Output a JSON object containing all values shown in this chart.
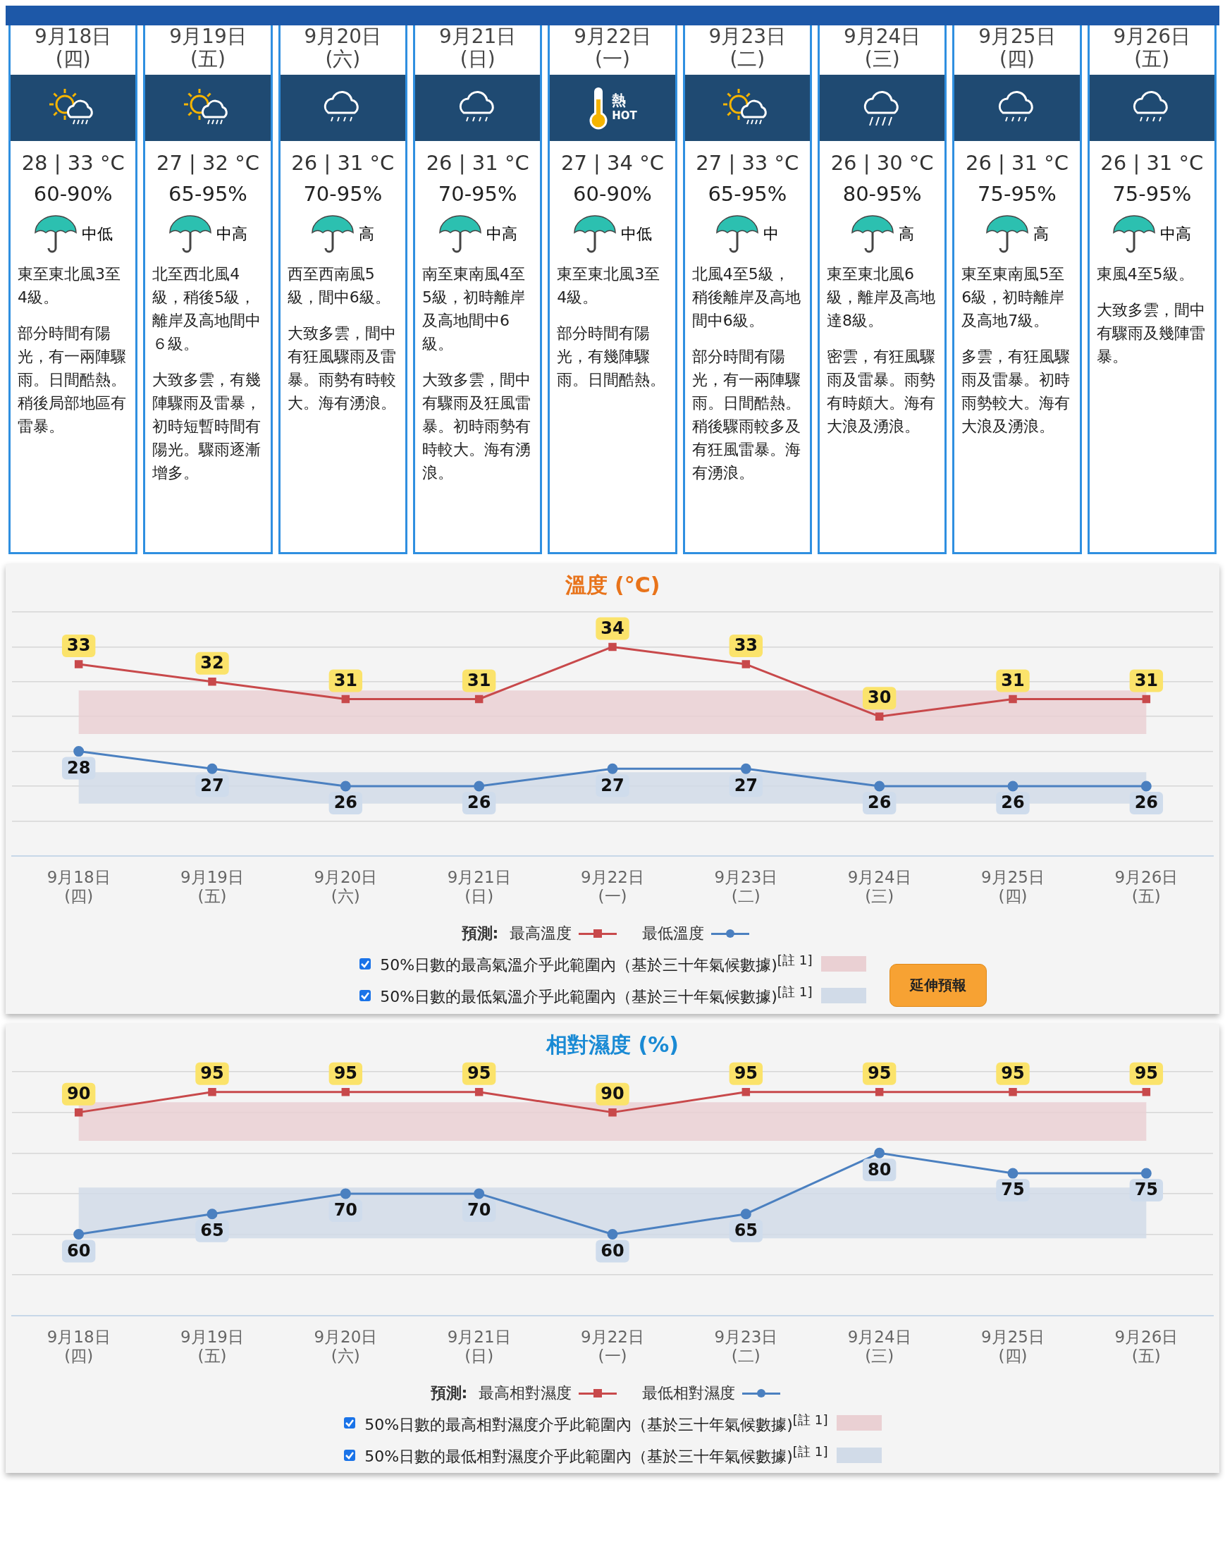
{
  "chart_data": [
    {
      "type": "other",
      "annotations": [
        "9月18日",
        "(四)",
        "28 | 33 °C",
        "60-90%",
        "中低",
        "東至東北風3至4級。",
        "部分時間有陽光，有一兩陣驟雨。日間酷熱。稍後局部地區有雷暴。",
        "9月19日",
        "(五)",
        "27 | 32 °C",
        "65-95%",
        "中高",
        "北至西北風4級，稍後5級，離岸及高地間中６級。",
        "大致多雲，有幾陣驟雨及雷暴，初時短暫時間有陽光。驟雨逐漸增多。",
        "9月20日",
        "(六)",
        "26 | 31 °C",
        "70-95%",
        "高",
        "西至西南風5級，間中6級。",
        "大致多雲，間中有狂風驟雨及雷暴。雨勢有時較大。海有湧浪。",
        "9月21日",
        "(日)",
        "26 | 31 °C",
        "70-95%",
        "中高",
        "南至東南風4至5級，初時離岸及高地間中6級。",
        "大致多雲，間中有驟雨及狂風雷暴。初時雨勢有時較大。海有湧浪。",
        "9月22日",
        "(一)",
        "27 | 34 °C",
        "60-90%",
        "中低",
        "東至東北風3至4級。",
        "部分時間有陽光，有幾陣驟雨。日間酷熱。",
        "9月23日",
        "(二)",
        "27 | 33 °C",
        "65-95%",
        "中",
        "北風4至5級，稍後離岸及高地間中6級。",
        "部分時間有陽光，有一兩陣驟雨。日間酷熱。稍後驟雨較多及有狂風雷暴。海有湧浪。",
        "9月24日",
        "(三)",
        "26 | 30 °C",
        "80-95%",
        "高",
        "東至東北風6級，離岸及高地達8級。",
        "密雲，有狂風驟雨及雷暴。雨勢有時頗大。海有大浪及湧浪。",
        "9月25日",
        "(四)",
        "26 | 31 °C",
        "75-95%",
        "高",
        "東至東南風5至6級，初時離岸及高地7級。",
        "多雲，有狂風驟雨及雷暴。初時雨勢較大。海有大浪及湧浪。",
        "9月26日",
        "(五)",
        "26 | 31 °C",
        "75-95%",
        "中高",
        "東風4至5級。",
        "大致多雲，間中有驟雨及幾陣雷暴。",
        "熱",
        "HOT"
      ]
    },
    {
      "type": "line",
      "title": "溫度 (°C)",
      "categories": [
        "9月18日\n(四)",
        "9月19日\n(五)",
        "9月20日\n(六)",
        "9月21日\n(日)",
        "9月22日\n(一)",
        "9月23日\n(二)",
        "9月24日\n(三)",
        "9月25日\n(四)",
        "9月26日\n(五)"
      ],
      "ylim": [
        22,
        36
      ],
      "yticks": [
        {
          "value": 22,
          "label": null
        },
        {
          "value": 24,
          "label": null
        },
        {
          "value": 26,
          "label": null
        },
        {
          "value": 28,
          "label": null
        },
        {
          "value": 30,
          "label": null
        },
        {
          "value": 32,
          "label": null
        },
        {
          "value": 34,
          "label": null
        },
        {
          "value": 36,
          "label": null
        }
      ],
      "grid": "y",
      "tick_labels": "x",
      "legend": "bottom",
      "legend_title": "預測:",
      "annotations": [
        "延伸預報"
      ],
      "series": [
        {
          "name": "最高溫度",
          "color": "#c8494b",
          "marker": "square",
          "values": [
            33,
            32,
            31,
            31,
            34,
            33,
            30,
            31,
            31
          ],
          "value_labels": [
            "33",
            "32",
            "31",
            "31",
            "34",
            "33",
            "30",
            "31",
            "31"
          ]
        },
        {
          "name": "最低溫度",
          "color": "#4b80c0",
          "marker": "circle",
          "values": [
            28,
            27,
            26,
            26,
            27,
            27,
            26,
            26,
            26
          ],
          "value_labels": [
            "28",
            "27",
            "26",
            "26",
            "27",
            "27",
            "26",
            "26",
            "26"
          ]
        }
      ],
      "bands": [
        {
          "axis": "y",
          "from": 29,
          "to": 31.5,
          "label": "50%日數的最高氣溫介乎此範圍內（基於三十年氣候數據)$^{[註 1]}$",
          "color": "#ead0d3"
        },
        {
          "axis": "y",
          "from": 25,
          "to": 26.8,
          "label": "50%日數的最低氣溫介乎此範圍內（基於三十年氣候數據)$^{[註 1]}$",
          "color": "#d1dbe8"
        }
      ]
    },
    {
      "type": "line",
      "title": "相對濕度 (%)",
      "categories": [
        "9月18日\n(四)",
        "9月19日\n(五)",
        "9月20日\n(六)",
        "9月21日\n(日)",
        "9月22日\n(一)",
        "9月23日\n(二)",
        "9月24日\n(三)",
        "9月25日\n(四)",
        "9月26日\n(五)"
      ],
      "ylim": [
        40,
        100
      ],
      "yticks": [
        {
          "value": 40,
          "label": null
        },
        {
          "value": 50,
          "label": null
        },
        {
          "value": 60,
          "label": null
        },
        {
          "value": 70,
          "label": null
        },
        {
          "value": 80,
          "label": null
        },
        {
          "value": 90,
          "label": null
        },
        {
          "value": 100,
          "label": null
        }
      ],
      "grid": "y",
      "tick_labels": "x",
      "legend": "bottom",
      "legend_title": "預測:",
      "series": [
        {
          "name": "最高相對濕度",
          "color": "#c8494b",
          "marker": "square",
          "values": [
            90,
            95,
            95,
            95,
            90,
            95,
            95,
            95,
            95
          ],
          "value_labels": [
            "90",
            "95",
            "95",
            "95",
            "90",
            "95",
            "95",
            "95",
            "95"
          ]
        },
        {
          "name": "最低相對濕度",
          "color": "#4b80c0",
          "marker": "circle",
          "values": [
            60,
            65,
            70,
            70,
            60,
            65,
            80,
            75,
            75
          ],
          "value_labels": [
            "60",
            "65",
            "70",
            "70",
            "60",
            "65",
            "80",
            "75",
            "75"
          ]
        }
      ],
      "bands": [
        {
          "axis": "y",
          "from": 83,
          "to": 92.5,
          "label": "50%日數的最高相對濕度介乎此範圍內（基於三十年氣候數據)$^{[註 1]}$",
          "color": "#ead0d3"
        },
        {
          "axis": "y",
          "from": 59,
          "to": 71.5,
          "label": "50%日數的最低相對濕度介乎此範圍內（基於三十年氣候數據)$^{[註 1]}$",
          "color": "#d1dbe8"
        }
      ]
    }
  ]
}
